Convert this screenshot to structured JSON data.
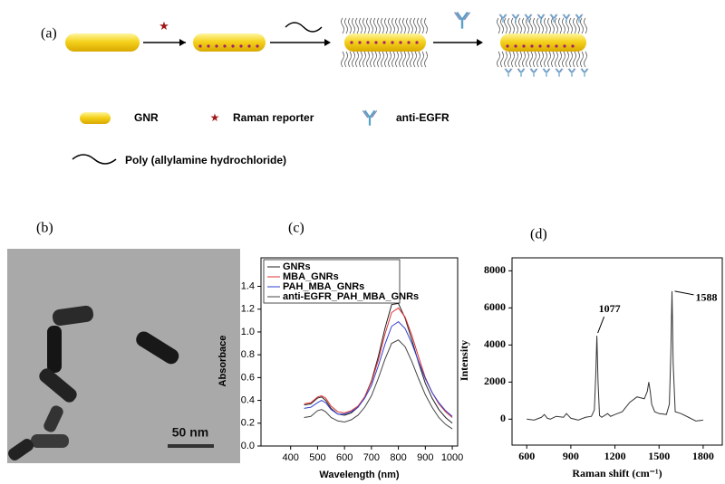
{
  "panels": {
    "a": "(a)",
    "b": "(b)",
    "c": "(c)",
    "d": "(d)"
  },
  "schematic": {
    "legend": {
      "gnr": "GNR",
      "reporter": "Raman reporter",
      "antibody": "anti-EGFR",
      "polymer": "Poly (allylamine hydrochloride)"
    }
  },
  "image": {
    "scale_bar": "50 nm"
  },
  "chart_data": [
    {
      "type": "line",
      "x_label": "Wavelength (nm)",
      "y_label": "Absorbace",
      "x": [
        450,
        475,
        500,
        515,
        530,
        550,
        575,
        600,
        625,
        650,
        675,
        700,
        725,
        750,
        775,
        800,
        825,
        850,
        875,
        900,
        925,
        950,
        975,
        1000
      ],
      "series": [
        {
          "name": "GNRs",
          "color": "#222222",
          "values": [
            0.36,
            0.37,
            0.42,
            0.43,
            0.4,
            0.33,
            0.28,
            0.27,
            0.29,
            0.34,
            0.43,
            0.57,
            0.78,
            1.03,
            1.24,
            1.25,
            1.12,
            0.93,
            0.73,
            0.55,
            0.42,
            0.32,
            0.25,
            0.2
          ]
        },
        {
          "name": "MBA_GNRs",
          "color": "#e03030",
          "values": [
            0.37,
            0.38,
            0.43,
            0.44,
            0.42,
            0.35,
            0.3,
            0.29,
            0.31,
            0.35,
            0.43,
            0.56,
            0.75,
            0.98,
            1.17,
            1.21,
            1.13,
            0.97,
            0.78,
            0.6,
            0.47,
            0.37,
            0.3,
            0.25
          ]
        },
        {
          "name": "PAH_MBA_GNRs",
          "color": "#3040d0",
          "values": [
            0.33,
            0.34,
            0.38,
            0.4,
            0.38,
            0.32,
            0.28,
            0.28,
            0.3,
            0.34,
            0.42,
            0.53,
            0.7,
            0.89,
            1.05,
            1.09,
            1.03,
            0.9,
            0.74,
            0.59,
            0.47,
            0.38,
            0.31,
            0.26
          ]
        },
        {
          "name": "anti-EGFR_PAH_MBA_GNRs",
          "color": "#444444",
          "values": [
            0.25,
            0.26,
            0.31,
            0.32,
            0.3,
            0.25,
            0.22,
            0.21,
            0.23,
            0.27,
            0.34,
            0.44,
            0.59,
            0.76,
            0.9,
            0.93,
            0.87,
            0.74,
            0.59,
            0.45,
            0.34,
            0.25,
            0.19,
            0.15
          ]
        }
      ],
      "xlim": [
        290,
        1020
      ],
      "ylim": [
        0,
        1.65
      ],
      "xticks": [
        400,
        500,
        600,
        700,
        800,
        900,
        1000
      ],
      "yticks": [
        {
          "value": 0,
          "label": "0.0"
        },
        0.2,
        0.4,
        0.6,
        0.8,
        {
          "value": 1,
          "label": "1.0"
        },
        1.2,
        1.4
      ],
      "legend": "upper left"
    },
    {
      "type": "line",
      "x_label": "Raman shift (cm⁻¹)",
      "y_label": "Intensity",
      "color": "#333333",
      "x": [
        600,
        650,
        700,
        720,
        740,
        760,
        800,
        850,
        870,
        900,
        950,
        1000,
        1040,
        1060,
        1070,
        1077,
        1085,
        1095,
        1110,
        1150,
        1170,
        1200,
        1250,
        1300,
        1350,
        1400,
        1420,
        1430,
        1440,
        1450,
        1470,
        1500,
        1550,
        1570,
        1580,
        1588,
        1596,
        1610,
        1650,
        1700,
        1750,
        1800
      ],
      "values": [
        0,
        -50,
        100,
        250,
        50,
        0,
        150,
        100,
        300,
        50,
        -50,
        100,
        150,
        500,
        2500,
        4500,
        2000,
        200,
        100,
        300,
        150,
        250,
        400,
        900,
        1200,
        1100,
        1500,
        2000,
        1500,
        800,
        400,
        300,
        250,
        800,
        3500,
        6900,
        3000,
        400,
        300,
        100,
        -100,
        -50
      ],
      "xlim": [
        500,
        1930
      ],
      "ylim": [
        -1400,
        8700
      ],
      "xticks": [
        600,
        900,
        1200,
        1500,
        1800
      ],
      "yticks": [
        0,
        2000,
        4000,
        6000,
        8000
      ],
      "annotations": [
        {
          "text": "1077",
          "x": 1077,
          "y": 4500,
          "side": "above"
        },
        {
          "text": "1588",
          "x": 1588,
          "y": 6900,
          "side": "right"
        }
      ]
    }
  ]
}
